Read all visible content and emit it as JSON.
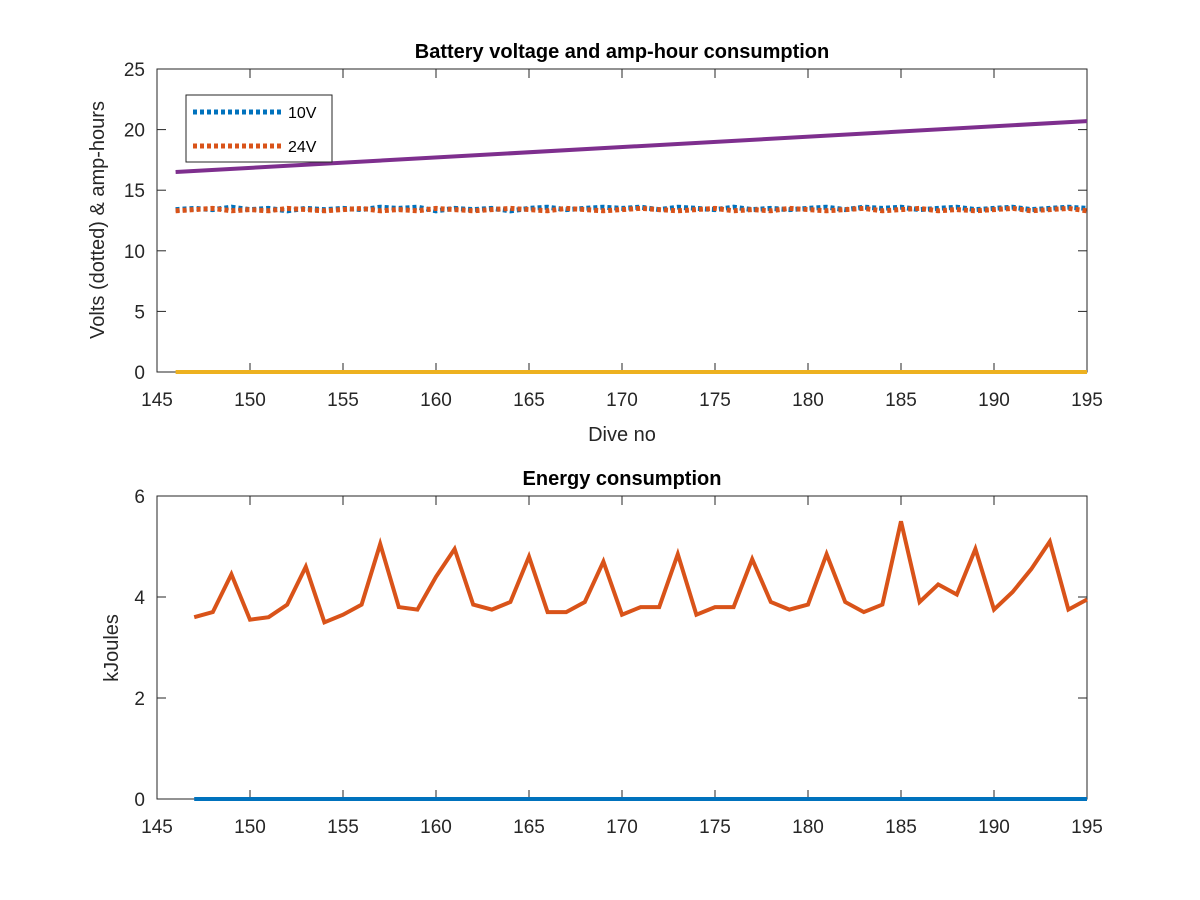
{
  "chart_data": [
    {
      "type": "line",
      "title": "Battery voltage and amp-hour consumption",
      "xlabel": "Dive no",
      "ylabel": "Volts (dotted) & amp-hours",
      "xlim": [
        145,
        195
      ],
      "ylim": [
        0,
        25
      ],
      "xticks": [
        145,
        150,
        155,
        160,
        165,
        170,
        175,
        180,
        185,
        190,
        195
      ],
      "yticks": [
        0,
        5,
        10,
        15,
        20,
        25
      ],
      "grid": false,
      "legend": {
        "placement": "top-left",
        "entries": [
          "10V",
          "24V"
        ]
      },
      "series": [
        {
          "name": "10V",
          "style": "dotted",
          "color": "#0072BD",
          "x": [
            146,
            147,
            148,
            149,
            150,
            151,
            152,
            153,
            154,
            155,
            156,
            157,
            158,
            159,
            160,
            161,
            162,
            163,
            164,
            165,
            166,
            167,
            168,
            169,
            170,
            171,
            172,
            173,
            174,
            175,
            176,
            177,
            178,
            179,
            180,
            181,
            182,
            183,
            184,
            185,
            186,
            187,
            188,
            189,
            190,
            191,
            192,
            193,
            194,
            195
          ],
          "y": [
            13.4,
            13.5,
            13.4,
            13.6,
            13.4,
            13.5,
            13.3,
            13.5,
            13.4,
            13.5,
            13.4,
            13.6,
            13.5,
            13.6,
            13.3,
            13.5,
            13.4,
            13.5,
            13.3,
            13.5,
            13.6,
            13.4,
            13.5,
            13.6,
            13.5,
            13.6,
            13.4,
            13.6,
            13.5,
            13.4,
            13.6,
            13.4,
            13.5,
            13.4,
            13.5,
            13.6,
            13.4,
            13.6,
            13.5,
            13.6,
            13.4,
            13.5,
            13.6,
            13.4,
            13.5,
            13.6,
            13.4,
            13.5,
            13.6,
            13.5
          ]
        },
        {
          "name": "24V",
          "style": "dotted",
          "color": "#D95319",
          "x": [
            146,
            147,
            148,
            149,
            150,
            151,
            152,
            153,
            154,
            155,
            156,
            157,
            158,
            159,
            160,
            161,
            162,
            163,
            164,
            165,
            166,
            167,
            168,
            169,
            170,
            171,
            172,
            173,
            174,
            175,
            176,
            177,
            178,
            179,
            180,
            181,
            182,
            183,
            184,
            185,
            186,
            187,
            188,
            189,
            190,
            191,
            192,
            193,
            194,
            195
          ],
          "y": [
            13.3,
            13.4,
            13.5,
            13.3,
            13.4,
            13.3,
            13.5,
            13.4,
            13.3,
            13.4,
            13.5,
            13.3,
            13.4,
            13.3,
            13.5,
            13.4,
            13.3,
            13.4,
            13.5,
            13.4,
            13.3,
            13.5,
            13.4,
            13.3,
            13.4,
            13.5,
            13.4,
            13.3,
            13.4,
            13.5,
            13.3,
            13.4,
            13.3,
            13.5,
            13.4,
            13.3,
            13.4,
            13.5,
            13.3,
            13.4,
            13.5,
            13.3,
            13.4,
            13.3,
            13.4,
            13.5,
            13.3,
            13.4,
            13.5,
            13.3
          ]
        },
        {
          "style": "solid",
          "color": "#7E2F8E",
          "x": [
            146,
            195
          ],
          "y": [
            16.5,
            20.7
          ]
        },
        {
          "style": "solid",
          "color": "#EDB120",
          "x": [
            146,
            195
          ],
          "y": [
            0,
            0
          ]
        }
      ]
    },
    {
      "type": "line",
      "title": "Energy consumption",
      "xlabel": "",
      "ylabel": "kJoules",
      "xlim": [
        145,
        195
      ],
      "ylim": [
        0,
        6
      ],
      "xticks": [
        145,
        150,
        155,
        160,
        165,
        170,
        175,
        180,
        185,
        190,
        195
      ],
      "yticks": [
        0,
        2,
        4,
        6
      ],
      "grid": false,
      "series": [
        {
          "style": "solid",
          "color": "#D95319",
          "x": [
            147,
            148,
            149,
            150,
            151,
            152,
            153,
            154,
            155,
            156,
            157,
            158,
            159,
            160,
            161,
            162,
            163,
            164,
            165,
            166,
            167,
            168,
            169,
            170,
            171,
            172,
            173,
            174,
            175,
            176,
            177,
            178,
            179,
            180,
            181,
            182,
            183,
            184,
            185,
            186,
            187,
            188,
            189,
            190,
            191,
            192,
            193,
            194,
            195
          ],
          "y": [
            3.6,
            3.7,
            4.45,
            3.55,
            3.6,
            3.85,
            4.6,
            3.5,
            3.65,
            3.85,
            5.05,
            3.8,
            3.75,
            4.4,
            4.95,
            3.85,
            3.75,
            3.9,
            4.8,
            3.7,
            3.7,
            3.9,
            4.7,
            3.65,
            3.8,
            3.8,
            4.85,
            3.65,
            3.8,
            3.8,
            4.75,
            3.9,
            3.75,
            3.85,
            4.85,
            3.9,
            3.7,
            3.85,
            5.5,
            3.9,
            4.25,
            4.05,
            4.95,
            3.75,
            4.1,
            4.55,
            5.1,
            3.75,
            3.95
          ]
        },
        {
          "style": "solid",
          "color": "#0072BD",
          "x": [
            147,
            195
          ],
          "y": [
            0,
            0
          ]
        }
      ]
    }
  ]
}
